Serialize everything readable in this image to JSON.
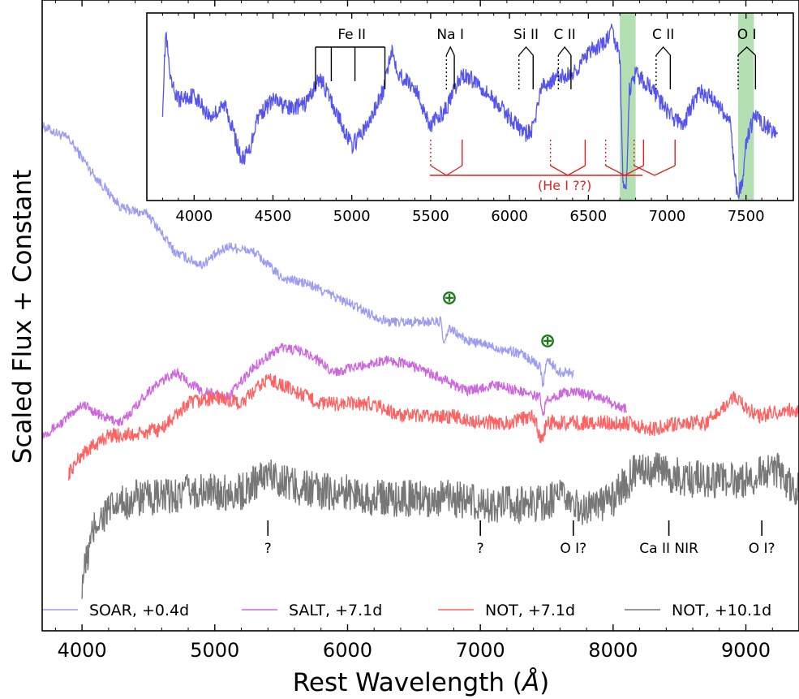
{
  "chart_data": [
    {
      "type": "line",
      "role": "main",
      "xlabel_prefix": "Rest Wavelength (",
      "xlabel_unit": "Å",
      "xlabel_suffix": ")",
      "ylabel": "Scaled Flux + Constant",
      "xlim": [
        3700,
        9400
      ],
      "ylim": [
        0,
        1
      ],
      "x_ticks": [
        "4000",
        "5000",
        "6000",
        "7000",
        "8000",
        "9000"
      ],
      "x_tick_values": [
        4000,
        5000,
        6000,
        7000,
        8000,
        9000
      ],
      "y_tick_labels": "none",
      "legend_placement": "bottom",
      "series": [
        {
          "name": "SOAR, +0.4d",
          "color": "#9b9bf2",
          "x": [
            3700,
            3900,
            4100,
            4300,
            4500,
            4700,
            4900,
            5100,
            5300,
            5500,
            5700,
            5900,
            6100,
            6300,
            6500,
            6700,
            6730,
            6760,
            6900,
            7100,
            7300,
            7450,
            7470,
            7500,
            7600,
            7700
          ],
          "y": [
            0.8,
            0.78,
            0.72,
            0.67,
            0.66,
            0.6,
            0.58,
            0.61,
            0.6,
            0.56,
            0.55,
            0.53,
            0.51,
            0.49,
            0.49,
            0.49,
            0.45,
            0.48,
            0.46,
            0.45,
            0.44,
            0.42,
            0.39,
            0.43,
            0.41,
            0.41
          ]
        },
        {
          "name": "SALT, +7.1d",
          "color": "#cc66dd",
          "x": [
            3700,
            3850,
            4000,
            4150,
            4300,
            4500,
            4700,
            4900,
            5100,
            5300,
            5500,
            5700,
            5900,
            6100,
            6300,
            6500,
            6700,
            6900,
            7100,
            7300,
            7450,
            7470,
            7500,
            7700,
            7900,
            8100
          ],
          "y": [
            0.31,
            0.33,
            0.36,
            0.34,
            0.33,
            0.38,
            0.41,
            0.38,
            0.37,
            0.42,
            0.45,
            0.44,
            0.41,
            0.42,
            0.43,
            0.42,
            0.4,
            0.38,
            0.39,
            0.38,
            0.37,
            0.34,
            0.37,
            0.38,
            0.37,
            0.35
          ]
        },
        {
          "name": "NOT,  +7.1d",
          "color": "#ff6060",
          "x": [
            3900,
            4000,
            4200,
            4400,
            4600,
            4800,
            5000,
            5200,
            5400,
            5600,
            5800,
            6000,
            6200,
            6400,
            6600,
            6800,
            7000,
            7200,
            7400,
            7460,
            7500,
            7700,
            7900,
            8100,
            8300,
            8500,
            8700,
            8900,
            9100,
            9300,
            9400
          ],
          "y": [
            0.25,
            0.28,
            0.31,
            0.31,
            0.32,
            0.36,
            0.37,
            0.36,
            0.4,
            0.38,
            0.36,
            0.36,
            0.36,
            0.34,
            0.34,
            0.34,
            0.33,
            0.33,
            0.34,
            0.3,
            0.33,
            0.33,
            0.33,
            0.33,
            0.32,
            0.33,
            0.33,
            0.37,
            0.34,
            0.35,
            0.35
          ]
        },
        {
          "name": "NOT, +10.1d",
          "color": "#777777",
          "x": [
            4000,
            4100,
            4200,
            4400,
            4600,
            4800,
            5000,
            5200,
            5400,
            5600,
            5800,
            6000,
            6200,
            6400,
            6600,
            6800,
            7000,
            7200,
            7400,
            7600,
            7800,
            8000,
            8200,
            8400,
            8600,
            8800,
            9000,
            9200,
            9400
          ],
          "y": [
            0.08,
            0.17,
            0.19,
            0.21,
            0.21,
            0.22,
            0.22,
            0.22,
            0.25,
            0.23,
            0.22,
            0.22,
            0.21,
            0.21,
            0.21,
            0.21,
            0.2,
            0.2,
            0.2,
            0.21,
            0.19,
            0.21,
            0.26,
            0.25,
            0.24,
            0.24,
            0.24,
            0.26,
            0.22
          ]
        }
      ],
      "telluric_markers": [
        {
          "label": "⊕",
          "x": 6730
        },
        {
          "label": "⊕",
          "x": 7470
        }
      ],
      "line_ids": [
        {
          "label": "?",
          "x": 5400
        },
        {
          "label": "?",
          "x": 7000
        },
        {
          "label": "O I?",
          "x": 7700
        },
        {
          "label": "Ca II NIR",
          "x": 8420
        },
        {
          "label": "O I?",
          "x": 9120
        }
      ]
    },
    {
      "type": "line",
      "role": "inset",
      "xlim": [
        3700,
        7800
      ],
      "ylim": [
        0,
        1
      ],
      "x_ticks": [
        "4000",
        "4500",
        "5000",
        "5500",
        "6000",
        "6500",
        "7000",
        "7500"
      ],
      "x_tick_values": [
        4000,
        4500,
        5000,
        5500,
        6000,
        6500,
        7000,
        7500
      ],
      "telluric_bands": [
        {
          "x0": 6700,
          "x1": 6800,
          "color": "#a6d9a6"
        },
        {
          "x0": 7450,
          "x1": 7550,
          "color": "#a6d9a6"
        }
      ],
      "series": [
        {
          "color": "#5555ee",
          "x": [
            3800,
            3820,
            3850,
            3900,
            4000,
            4100,
            4200,
            4300,
            4350,
            4400,
            4500,
            4600,
            4700,
            4800,
            4900,
            5000,
            5100,
            5200,
            5250,
            5300,
            5400,
            5500,
            5600,
            5700,
            5800,
            5900,
            6000,
            6100,
            6150,
            6200,
            6300,
            6400,
            6500,
            6600,
            6650,
            6700,
            6720,
            6740,
            6760,
            6800,
            6900,
            7000,
            7100,
            7200,
            7300,
            7400,
            7440,
            7460,
            7480,
            7500,
            7550,
            7600,
            7700
          ],
          "y": [
            0.5,
            0.95,
            0.65,
            0.55,
            0.58,
            0.45,
            0.52,
            0.2,
            0.25,
            0.45,
            0.55,
            0.5,
            0.52,
            0.68,
            0.48,
            0.28,
            0.4,
            0.6,
            0.85,
            0.7,
            0.62,
            0.4,
            0.5,
            0.7,
            0.65,
            0.55,
            0.45,
            0.35,
            0.38,
            0.62,
            0.68,
            0.7,
            0.82,
            0.88,
            0.95,
            0.8,
            0.05,
            0.02,
            0.6,
            0.7,
            0.62,
            0.48,
            0.4,
            0.6,
            0.55,
            0.42,
            0.02,
            0.02,
            0.05,
            0.3,
            0.45,
            0.42,
            0.35
          ]
        }
      ],
      "annotations": [
        {
          "label": "Fe II",
          "x": 5000,
          "ticks": [
            4770,
            4870,
            5020,
            5210
          ],
          "color": "#000000",
          "style": "comb"
        },
        {
          "label": "Na I",
          "x": 5650,
          "ticks": [
            5650
          ],
          "dotted": [
            5600
          ],
          "color": "#000000",
          "style": "chevron"
        },
        {
          "label": "Si II",
          "x": 6150,
          "ticks": [
            6150
          ],
          "dotted": [
            6060
          ],
          "color": "#000000",
          "style": "chevron"
        },
        {
          "label": "C II",
          "x": 6390,
          "ticks": [
            6390
          ],
          "dotted": [
            6310
          ],
          "color": "#000000",
          "style": "chevron"
        },
        {
          "label": "C II",
          "x": 6960,
          "ticks": [
            7020
          ],
          "dotted": [
            6930
          ],
          "color": "#000000",
          "style": "chevron"
        },
        {
          "label": "O I",
          "x": 7520,
          "ticks": [
            7560
          ],
          "dotted": [
            7450
          ],
          "color": "#000000",
          "style": "chevron"
        }
      ],
      "he_i": {
        "label": "(He I ??)",
        "color": "#dd2222",
        "solid": [
          5700,
          6480,
          6850,
          7050
        ],
        "dotted": [
          5500,
          6260,
          6610,
          6790
        ],
        "span": [
          5500,
          7050
        ]
      }
    }
  ]
}
